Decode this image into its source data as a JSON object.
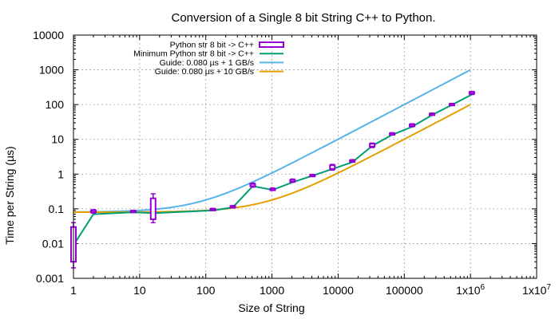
{
  "chart_data": {
    "type": "line",
    "title": "Conversion of a Single 8 bit String C++ to Python.",
    "xlabel": "Size of String",
    "ylabel": "Time per String (µs)",
    "x_scale": "log",
    "y_scale": "log",
    "xlim": [
      1,
      10000000
    ],
    "ylim": [
      0.001,
      10000
    ],
    "grid": true,
    "legend_position": "top-right",
    "x_ticks": [
      {
        "value": 1,
        "label": "1"
      },
      {
        "value": 10,
        "label": "10"
      },
      {
        "value": 100,
        "label": "100"
      },
      {
        "value": 1000,
        "label": "1000"
      },
      {
        "value": 10000,
        "label": "10000"
      },
      {
        "value": 100000,
        "label": "100000"
      },
      {
        "value": 1000000,
        "label": "1x10",
        "sup": "6"
      },
      {
        "value": 10000000,
        "label": "1x10",
        "sup": "7"
      }
    ],
    "y_ticks": [
      {
        "value": 0.001,
        "label": "0.001"
      },
      {
        "value": 0.01,
        "label": "0.01"
      },
      {
        "value": 0.1,
        "label": "0.1"
      },
      {
        "value": 1,
        "label": "1"
      },
      {
        "value": 10,
        "label": "10"
      },
      {
        "value": 100,
        "label": "100"
      },
      {
        "value": 1000,
        "label": "1000"
      },
      {
        "value": 10000,
        "label": "10000"
      }
    ],
    "series": [
      {
        "name": "Python str 8 bit -> C++",
        "kind": "boxes",
        "color": "#9400d3",
        "points": [
          {
            "x": 1,
            "min": 0.002,
            "q1": 0.003,
            "q3": 0.03,
            "max": 0.04
          },
          {
            "x": 2,
            "min": 0.075,
            "q1": 0.08,
            "q3": 0.09,
            "max": 0.095
          },
          {
            "x": 8,
            "min": 0.082,
            "q1": 0.084,
            "q3": 0.088,
            "max": 0.09
          },
          {
            "x": 16,
            "min": 0.04,
            "q1": 0.05,
            "q3": 0.2,
            "max": 0.27
          },
          {
            "x": 128,
            "min": 0.092,
            "q1": 0.095,
            "q3": 0.1,
            "max": 0.103
          },
          {
            "x": 256,
            "min": 0.11,
            "q1": 0.115,
            "q3": 0.12,
            "max": 0.125
          },
          {
            "x": 512,
            "min": 0.42,
            "q1": 0.45,
            "q3": 0.52,
            "max": 0.55
          },
          {
            "x": 1024,
            "min": 0.35,
            "q1": 0.36,
            "q3": 0.38,
            "max": 0.4
          },
          {
            "x": 2048,
            "min": 0.58,
            "q1": 0.6,
            "q3": 0.68,
            "max": 0.72
          },
          {
            "x": 4096,
            "min": 0.85,
            "q1": 0.88,
            "q3": 0.95,
            "max": 0.98
          },
          {
            "x": 8192,
            "min": 1.3,
            "q1": 1.4,
            "q3": 1.8,
            "max": 1.9
          },
          {
            "x": 16384,
            "min": 2.2,
            "q1": 2.3,
            "q3": 2.5,
            "max": 2.6
          },
          {
            "x": 32768,
            "min": 5.8,
            "q1": 6.2,
            "q3": 7.5,
            "max": 7.8
          },
          {
            "x": 65536,
            "min": 13.5,
            "q1": 14,
            "q3": 15,
            "max": 15.5
          },
          {
            "x": 131072,
            "min": 23,
            "q1": 24,
            "q3": 27,
            "max": 28
          },
          {
            "x": 262144,
            "min": 50,
            "q1": 52,
            "q3": 55,
            "max": 57
          },
          {
            "x": 524288,
            "min": 98,
            "q1": 100,
            "q3": 105,
            "max": 108
          },
          {
            "x": 1048576,
            "min": 195,
            "q1": 205,
            "q3": 230,
            "max": 240
          }
        ]
      },
      {
        "name": "Minimum Python str 8 bit -> C++",
        "kind": "line",
        "color": "#009e73",
        "x": [
          1,
          2,
          8,
          16,
          128,
          256,
          512,
          1024,
          2048,
          4096,
          8192,
          16384,
          32768,
          65536,
          131072,
          262144,
          524288,
          1048576
        ],
        "y": [
          0.009,
          0.07,
          0.08,
          0.075,
          0.09,
          0.11,
          0.45,
          0.35,
          0.58,
          0.9,
          1.4,
          2.2,
          6.5,
          13.5,
          23,
          50,
          98,
          195
        ]
      },
      {
        "name": "Guide: 0.080 µs + 1 GB/s",
        "kind": "guide",
        "color": "#56b4e9",
        "base_us": 0.08,
        "gb_per_s": 1
      },
      {
        "name": "Guide: 0.080 µs + 10 GB/s",
        "kind": "guide",
        "color": "#e69f00",
        "base_us": 0.08,
        "gb_per_s": 10
      }
    ]
  }
}
